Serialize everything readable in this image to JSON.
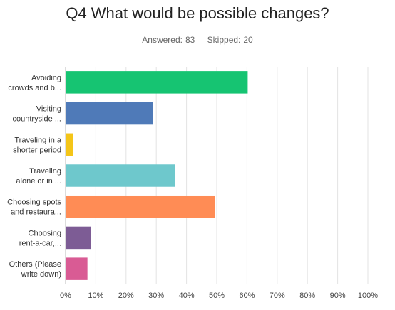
{
  "header": {
    "title": "Q4 What would be possible changes?",
    "answered_label": "Answered:",
    "answered_value": "83",
    "skipped_label": "Skipped:",
    "skipped_value": "20"
  },
  "chart_data": {
    "type": "bar",
    "orientation": "horizontal",
    "categories": [
      [
        "Avoiding",
        "crowds and b..."
      ],
      [
        "Visiting",
        "countryside ..."
      ],
      [
        "Traveling in a",
        "shorter period"
      ],
      [
        "Traveling",
        "alone or in ..."
      ],
      [
        "Choosing spots",
        "and restaura..."
      ],
      [
        "Choosing",
        "rent-a-car,..."
      ],
      [
        "Others (Please",
        "write down)"
      ]
    ],
    "values": [
      60.24,
      28.92,
      2.41,
      36.14,
      49.4,
      8.43,
      7.23
    ],
    "colors": [
      "#16c472",
      "#4f7ab8",
      "#f4c518",
      "#6ec8cc",
      "#ff8c55",
      "#7d5c95",
      "#d95b94"
    ],
    "x_ticks": [
      "0%",
      "10%",
      "20%",
      "30%",
      "40%",
      "50%",
      "60%",
      "70%",
      "80%",
      "90%",
      "100%"
    ],
    "xlim": [
      0,
      100
    ],
    "grid": true,
    "legend": "none"
  }
}
